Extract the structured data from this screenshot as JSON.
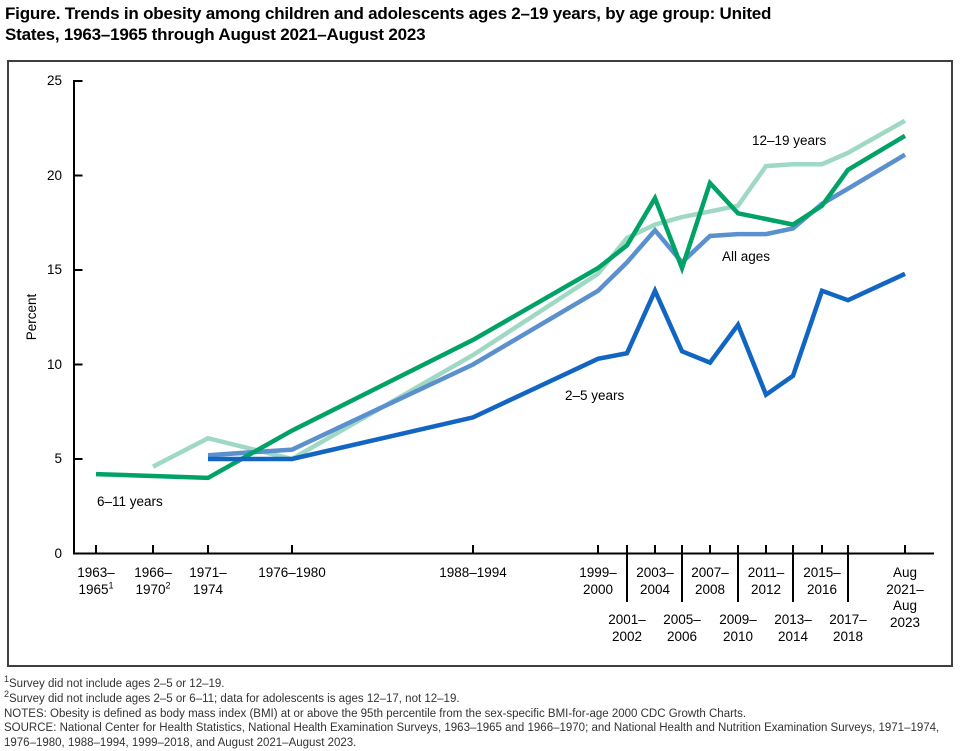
{
  "title": {
    "line1": "Figure. Trends in obesity among children and adolescents ages 2–19 years, by age group: United",
    "line2": "States, 1963–1965 through August 2021–August 2023"
  },
  "chart_data": {
    "type": "line",
    "title": "Figure. Trends in obesity among children and adolescents ages 2–19 years, by age group: United States, 1963–1965 through August 2021–August 2023",
    "xlabel": "",
    "ylabel": "Percent",
    "ylim": [
      0,
      25
    ],
    "yticks": [
      0,
      5,
      10,
      15,
      20,
      25
    ],
    "grid": false,
    "legend": "inline-annotations",
    "categories": [
      "1963–1965",
      "1966–1970",
      "1971–1974",
      "1976–1980",
      "1988–1994",
      "1999–2000",
      "2001–2002",
      "2003–2004",
      "2005–2006",
      "2007–2008",
      "2009–2010",
      "2011–2012",
      "2013–2014",
      "2015–2016",
      "2017–2018",
      "Aug 2021–Aug 2023"
    ],
    "series": [
      {
        "name": "12–19 years",
        "color_key": "teal",
        "values": [
          null,
          4.6,
          6.1,
          5.0,
          10.5,
          14.8,
          16.7,
          17.4,
          17.8,
          18.1,
          18.4,
          20.5,
          20.6,
          20.6,
          21.2,
          22.9
        ]
      },
      {
        "name": "All ages",
        "color_key": "slate",
        "values": [
          null,
          null,
          5.2,
          5.5,
          10.0,
          13.9,
          15.4,
          17.1,
          15.4,
          16.8,
          16.9,
          16.9,
          17.2,
          18.5,
          19.3,
          21.1
        ]
      },
      {
        "name": "6–11 years",
        "color_key": "green",
        "values": [
          4.2,
          null,
          4.0,
          6.5,
          11.3,
          15.1,
          16.3,
          18.8,
          15.1,
          19.6,
          18.0,
          17.7,
          17.4,
          18.4,
          20.3,
          22.1
        ]
      },
      {
        "name": "2–5 years",
        "color_key": "blue",
        "values": [
          null,
          null,
          5.0,
          5.0,
          7.2,
          10.3,
          10.6,
          13.9,
          10.7,
          10.1,
          12.1,
          8.4,
          9.4,
          13.9,
          13.4,
          14.8
        ]
      }
    ],
    "colors": {
      "teal": "#9fd8c3",
      "slate": "#5b90ce",
      "green": "#00a266",
      "blue": "#1266c2",
      "axis": "#000000",
      "frame_border": "#3f3f3f"
    },
    "x_ticks": [
      {
        "lines": [
          "1963–",
          "1965"
        ],
        "marker": "1",
        "row": 1
      },
      {
        "lines": [
          "1966–",
          "1970"
        ],
        "marker": "2",
        "row": 1
      },
      {
        "lines": [
          "1971–",
          "1974"
        ],
        "marker": "",
        "row": 1
      },
      {
        "lines": [
          "1976–1980"
        ],
        "marker": "",
        "row": 1
      },
      {
        "lines": [
          "1988–1994"
        ],
        "marker": "",
        "row": 1
      },
      {
        "lines": [
          "1999–",
          "2000"
        ],
        "marker": "",
        "row": 1
      },
      {
        "lines": [
          "2001–",
          "2002"
        ],
        "marker": "",
        "row": 2
      },
      {
        "lines": [
          "2003–",
          "2004"
        ],
        "marker": "",
        "row": 1
      },
      {
        "lines": [
          "2005–",
          "2006"
        ],
        "marker": "",
        "row": 2
      },
      {
        "lines": [
          "2007–",
          "2008"
        ],
        "marker": "",
        "row": 1
      },
      {
        "lines": [
          "2009–",
          "2010"
        ],
        "marker": "",
        "row": 2
      },
      {
        "lines": [
          "2011–",
          "2012"
        ],
        "marker": "",
        "row": 1
      },
      {
        "lines": [
          "2013–",
          "2014"
        ],
        "marker": "",
        "row": 2
      },
      {
        "lines": [
          "2015–",
          "2016"
        ],
        "marker": "",
        "row": 1
      },
      {
        "lines": [
          "2017–",
          "2018"
        ],
        "marker": "",
        "row": 2
      },
      {
        "lines": [
          "Aug",
          "2021–",
          "Aug",
          "2023"
        ],
        "marker": "",
        "row": 1
      }
    ]
  },
  "footnotes": [
    {
      "marker": "1",
      "text": "Survey did not include ages 2–5 or 12–19."
    },
    {
      "marker": "2",
      "text": "Survey did not include ages 2–5 or 6–11; data for adolescents is ages 12–17, not 12–19."
    },
    {
      "marker": "",
      "text": "NOTES: Obesity is defined as body mass index (BMI) at or above the 95th percentile from the sex-specific BMI-for-age 2000 CDC Growth Charts."
    },
    {
      "marker": "",
      "text": "SOURCE: National Center for Health Statistics, National Health Examination Surveys, 1963–1965 and 1966–1970; and National Health and Nutrition Examination Surveys, 1971–1974, 1976–1980, 1988–1994, 1999–2018, and August 2021–August 2023."
    }
  ]
}
